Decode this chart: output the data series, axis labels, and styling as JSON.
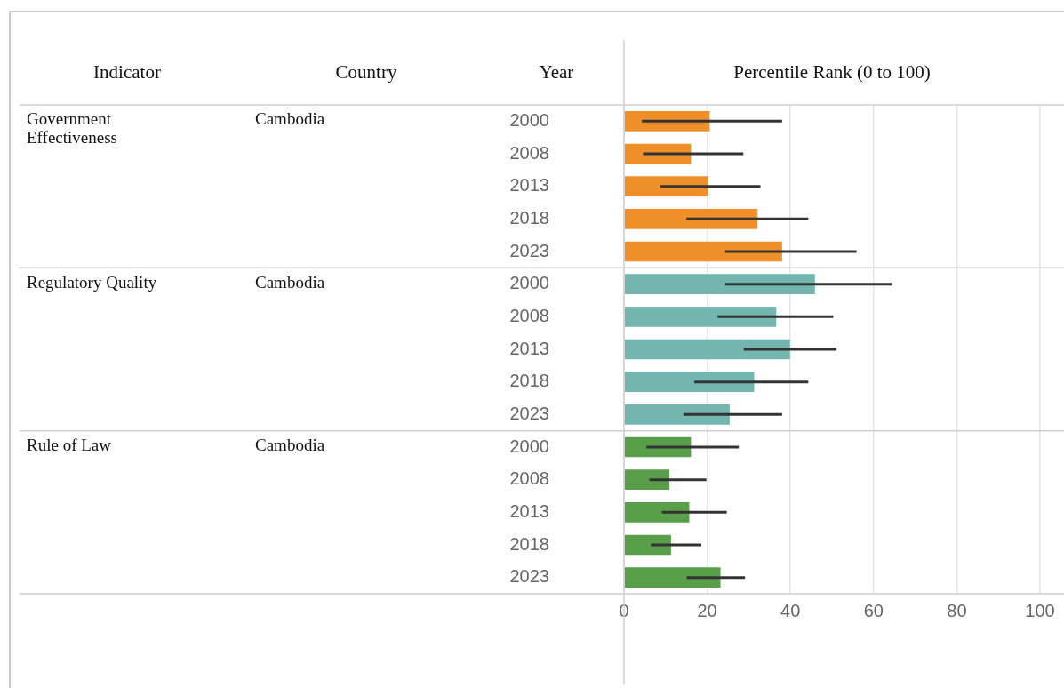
{
  "chart_data": {
    "type": "bar",
    "orientation": "horizontal",
    "xlabel": "Percentile Rank (0 to 100)",
    "ylabel": "Year",
    "categories": [
      "2000",
      "2008",
      "2013",
      "2018",
      "2023",
      "2000",
      "2008",
      "2013",
      "2018",
      "2023",
      "2000",
      "2008",
      "2013",
      "2018",
      "2023"
    ],
    "series": [
      {
        "color": "#ef8f2a",
        "values": [
          20.6,
          16.1,
          20.2,
          32.1,
          38.0,
          null,
          null,
          null,
          null,
          null,
          null,
          null,
          null,
          null,
          null
        ],
        "errors": [
          [
            4.3,
            38.0
          ],
          [
            4.6,
            28.7
          ],
          [
            8.7,
            32.8
          ],
          [
            15.0,
            44.3
          ],
          [
            24.3,
            55.9
          ],
          null,
          null,
          null,
          null,
          null,
          null,
          null,
          null,
          null,
          null
        ]
      },
      {
        "color": "#73b6af",
        "values": [
          null,
          null,
          null,
          null,
          null,
          45.9,
          36.6,
          39.9,
          31.3,
          25.4,
          null,
          null,
          null,
          null,
          null
        ],
        "errors": [
          null,
          null,
          null,
          null,
          null,
          [
            24.3,
            64.4
          ],
          [
            22.5,
            50.3
          ],
          [
            28.8,
            51.1
          ],
          [
            16.9,
            44.3
          ],
          [
            14.3,
            38.0
          ],
          null,
          null,
          null,
          null,
          null
        ]
      },
      {
        "color": "#599e48",
        "values": [
          null,
          null,
          null,
          null,
          null,
          null,
          null,
          null,
          null,
          null,
          16.1,
          10.9,
          15.7,
          11.3,
          23.2
        ],
        "errors": [
          null,
          null,
          null,
          null,
          null,
          null,
          null,
          null,
          null,
          null,
          [
            5.4,
            27.6
          ],
          [
            6.1,
            19.8
          ],
          [
            9.1,
            24.7
          ],
          [
            6.5,
            18.6
          ],
          [
            15.1,
            29.1
          ]
        ]
      }
    ],
    "xlim": [
      0,
      100
    ],
    "xticks": [
      0,
      20,
      40,
      60,
      80,
      100
    ],
    "grid": "x",
    "legend": false,
    "annotations": [
      "Indicator",
      "Country",
      "Government Effectiveness",
      "Cambodia",
      "Regulatory Quality",
      "Cambodia",
      "Rule of Law",
      "Cambodia"
    ]
  }
}
